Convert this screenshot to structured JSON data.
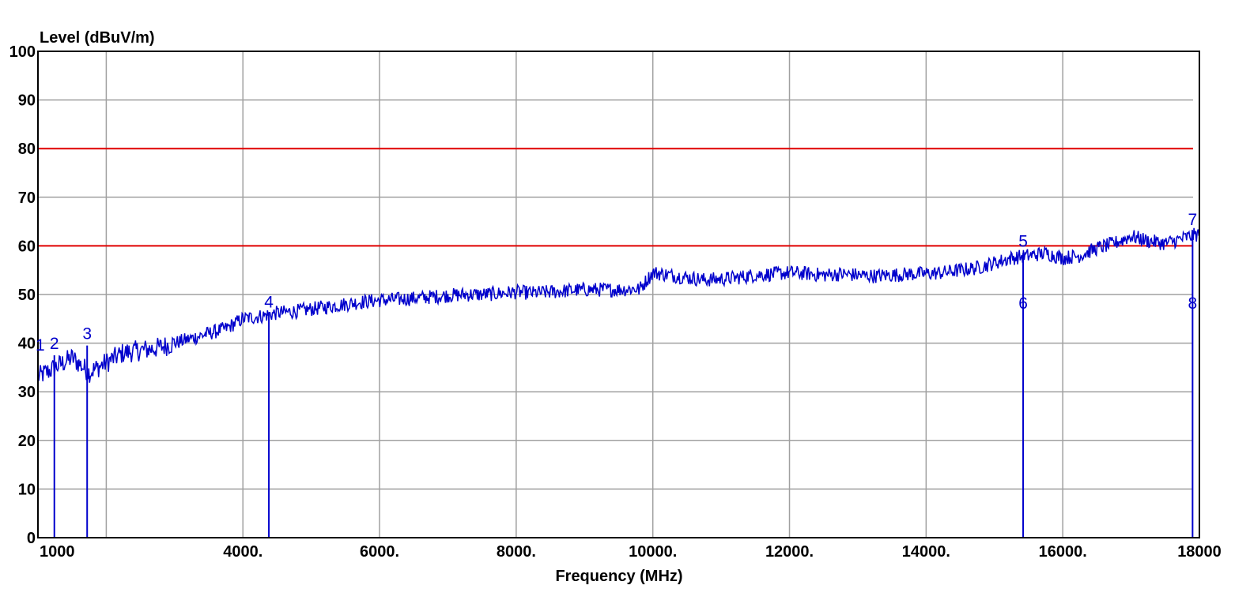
{
  "chart_data": {
    "type": "line",
    "xlabel": "Frequency (MHz)",
    "ylabel": "Level (dBuV/m)",
    "xlim": [
      1000,
      18000
    ],
    "ylim": [
      0,
      100
    ],
    "x_ticks": [
      {
        "value": 1000,
        "label": "1000"
      },
      {
        "value": 4000,
        "label": "4000."
      },
      {
        "value": 6000,
        "label": "6000."
      },
      {
        "value": 8000,
        "label": "8000."
      },
      {
        "value": 10000,
        "label": "10000."
      },
      {
        "value": 12000,
        "label": "12000."
      },
      {
        "value": 14000,
        "label": "14000."
      },
      {
        "value": 16000,
        "label": "16000."
      },
      {
        "value": 18000,
        "label": "18000"
      }
    ],
    "x_gridlines": [
      2000,
      4000,
      6000,
      8000,
      10000,
      12000,
      14000,
      16000
    ],
    "y_ticks": [
      0,
      10,
      20,
      30,
      40,
      50,
      60,
      70,
      80,
      90,
      100
    ],
    "grid": true,
    "limit_lines": [
      {
        "value": 80,
        "color": "#e00000"
      },
      {
        "value": 60,
        "color": "#e00000"
      }
    ],
    "trace_color": "#0000cc",
    "series": [
      {
        "x": [
          1000,
          1250,
          1500,
          1750,
          2000,
          2250,
          2500,
          2750,
          3000,
          3250,
          3500,
          3750,
          4000,
          4250,
          4500,
          4750,
          5000,
          5250,
          5500,
          5750,
          6000,
          6250,
          6500,
          6750,
          7000,
          7250,
          7500,
          7750,
          8000,
          8250,
          8500,
          8750,
          9000,
          9250,
          9500,
          9750,
          9800,
          10000,
          10250,
          10500,
          10750,
          11000,
          11250,
          11500,
          11750,
          12000,
          12250,
          12500,
          12750,
          13000,
          13250,
          13500,
          13750,
          14000,
          14250,
          14500,
          14750,
          15000,
          15250,
          15500,
          15750,
          16000,
          16250,
          16500,
          16750,
          17000,
          17250,
          17500,
          17750,
          18000
        ],
        "y": [
          33,
          35,
          37,
          34,
          36,
          38,
          38.5,
          39,
          40,
          41,
          42,
          43,
          45,
          45.5,
          46.2,
          46.5,
          47,
          47.5,
          48,
          48.5,
          48.8,
          49,
          49.2,
          49.5,
          49.8,
          50,
          50,
          50.2,
          50.5,
          50.3,
          50.5,
          50.8,
          51,
          51,
          51,
          51.2,
          51,
          54.5,
          54,
          53.5,
          53,
          53.2,
          53.5,
          54,
          54.2,
          54.5,
          54.3,
          54,
          54.2,
          54,
          53.8,
          54,
          54.2,
          54.3,
          54.5,
          55,
          55.5,
          56.5,
          57.5,
          58,
          58.5,
          57.5,
          58,
          59.5,
          60.5,
          62,
          61,
          60.5,
          61.5,
          62.5
        ]
      }
    ],
    "markers": [
      {
        "label": "1",
        "x": 1000,
        "y": 38.5,
        "label_pos": "top"
      },
      {
        "label": "2",
        "x": 1240,
        "y": 37.5,
        "label_pos": "top"
      },
      {
        "label": "3",
        "x": 1720,
        "y": 39.5,
        "label_pos": "top"
      },
      {
        "label": "4",
        "x": 4380,
        "y": 46,
        "label_pos": "top"
      },
      {
        "label": "5",
        "x": 15420,
        "y": 58.5,
        "label_pos": "top"
      },
      {
        "label": "6",
        "x": 15420,
        "y": 58.5,
        "label_pos": "below"
      },
      {
        "label": "7",
        "x": 17900,
        "y": 63,
        "label_pos": "top"
      },
      {
        "label": "8",
        "x": 17900,
        "y": 63,
        "label_pos": "below"
      }
    ]
  }
}
